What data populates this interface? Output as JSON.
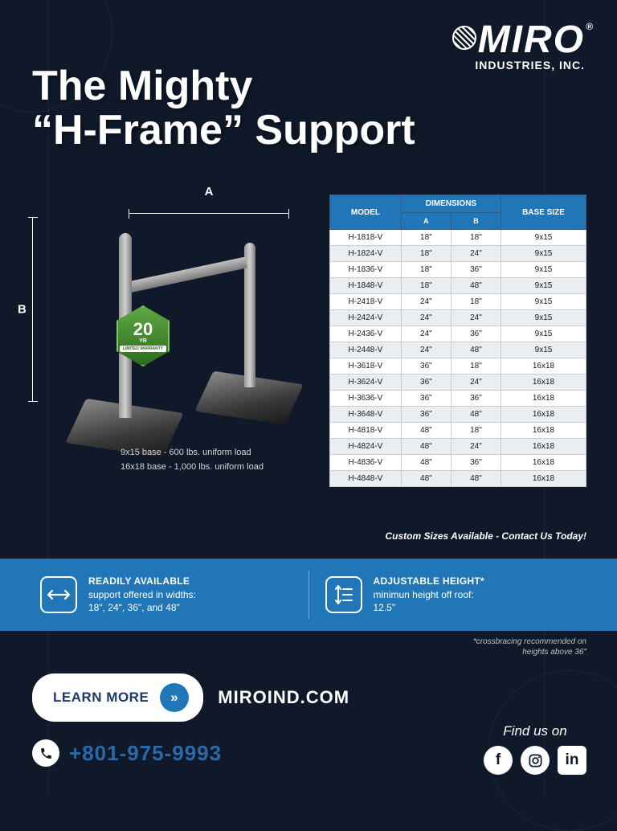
{
  "logo": {
    "brand": "MIRO",
    "subtitle": "INDUSTRIES, INC.",
    "registered": "®"
  },
  "headline_line1": "The Mighty",
  "headline_line2": "“H-Frame” Support",
  "dimensions": {
    "a_label": "A",
    "b_label": "B"
  },
  "warranty": {
    "years": "20",
    "yr": "YR",
    "label": "LIMITED WARRANTY"
  },
  "load_notes": {
    "line1": "9x15 base - 600 lbs. uniform load",
    "line2": "16x18 base - 1,000 lbs. uniform load"
  },
  "table": {
    "headers": {
      "model": "MODEL",
      "dimensions": "DIMENSIONS",
      "a": "A",
      "b": "B",
      "base": "BASE SIZE"
    },
    "rows": [
      {
        "model": "H-1818-V",
        "a": "18\"",
        "b": "18\"",
        "base": "9x15"
      },
      {
        "model": "H-1824-V",
        "a": "18\"",
        "b": "24\"",
        "base": "9x15"
      },
      {
        "model": "H-1836-V",
        "a": "18\"",
        "b": "36\"",
        "base": "9x15"
      },
      {
        "model": "H-1848-V",
        "a": "18\"",
        "b": "48\"",
        "base": "9x15"
      },
      {
        "model": "H-2418-V",
        "a": "24\"",
        "b": "18\"",
        "base": "9x15"
      },
      {
        "model": "H-2424-V",
        "a": "24\"",
        "b": "24\"",
        "base": "9x15"
      },
      {
        "model": "H-2436-V",
        "a": "24\"",
        "b": "36\"",
        "base": "9x15"
      },
      {
        "model": "H-2448-V",
        "a": "24\"",
        "b": "48\"",
        "base": "9x15"
      },
      {
        "model": "H-3618-V",
        "a": "36\"",
        "b": "18\"",
        "base": "16x18"
      },
      {
        "model": "H-3624-V",
        "a": "36\"",
        "b": "24\"",
        "base": "16x18"
      },
      {
        "model": "H-3636-V",
        "a": "36\"",
        "b": "36\"",
        "base": "16x18"
      },
      {
        "model": "H-3648-V",
        "a": "36\"",
        "b": "48\"",
        "base": "16x18"
      },
      {
        "model": "H-4818-V",
        "a": "48\"",
        "b": "18\"",
        "base": "16x18"
      },
      {
        "model": "H-4824-V",
        "a": "48\"",
        "b": "24\"",
        "base": "16x18"
      },
      {
        "model": "H-4836-V",
        "a": "48\"",
        "b": "36\"",
        "base": "16x18"
      },
      {
        "model": "H-4848-V",
        "a": "48\"",
        "b": "48\"",
        "base": "16x18"
      }
    ]
  },
  "custom_note": "Custom Sizes Available - Contact Us Today!",
  "features": {
    "left": {
      "title": "READILY AVAILABLE",
      "line1": "support offered in widths:",
      "line2": "18\", 24\", 36\", and 48\""
    },
    "right": {
      "title": "ADJUSTABLE HEIGHT*",
      "line1": "minimun height off roof:",
      "line2": "12.5\""
    }
  },
  "disclaimer": {
    "line1": "*crossbracing recommended on",
    "line2": "heights above 36\""
  },
  "cta": {
    "button": "LEARN MORE",
    "url": "MIROIND.COM"
  },
  "phone": "+801-975-9993",
  "social": {
    "label": "Find us on"
  },
  "colors": {
    "bg": "#0f1929",
    "accent": "#2176b8",
    "phone": "#2a6aa8"
  }
}
